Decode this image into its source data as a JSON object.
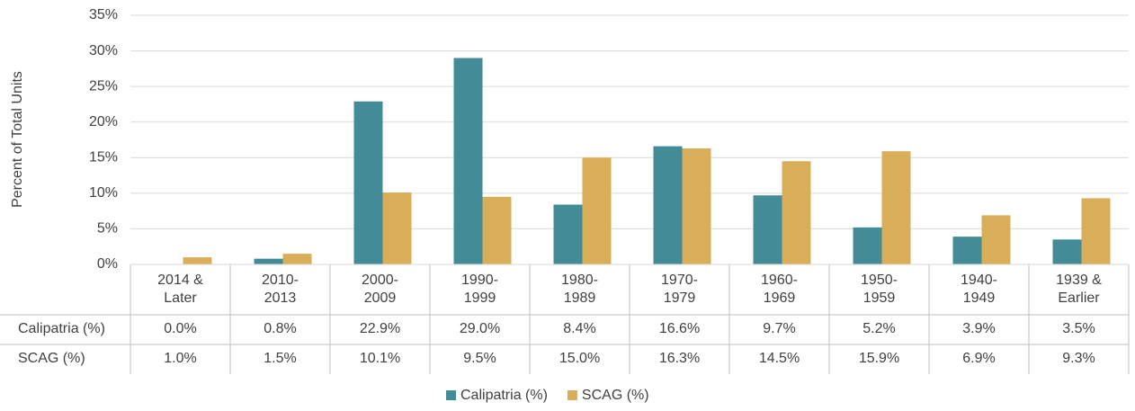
{
  "chart_data": {
    "type": "bar",
    "y_label": "Percent of Total Units",
    "categories": [
      "2014 &\nLater",
      "2010-\n2013",
      "2000-\n2009",
      "1990-\n1999",
      "1980-\n1989",
      "1970-\n1979",
      "1960-\n1969",
      "1950-\n1959",
      "1940-\n1949",
      "1939 &\nEarlier"
    ],
    "series": [
      {
        "name": "Calipatria (%)",
        "color": "#448b98",
        "values": [
          0.0,
          0.8,
          22.9,
          29.0,
          8.4,
          16.6,
          9.7,
          5.2,
          3.9,
          3.5
        ],
        "value_labels": [
          "0.0%",
          "0.8%",
          "22.9%",
          "29.0%",
          "8.4%",
          "16.6%",
          "9.7%",
          "5.2%",
          "3.9%",
          "3.5%"
        ]
      },
      {
        "name": "SCAG (%)",
        "color": "#d9ae58",
        "values": [
          1.0,
          1.5,
          10.1,
          9.5,
          15.0,
          16.3,
          14.5,
          15.9,
          6.9,
          9.3
        ],
        "value_labels": [
          "1.0%",
          "1.5%",
          "10.1%",
          "9.5%",
          "15.0%",
          "16.3%",
          "14.5%",
          "15.9%",
          "6.9%",
          "9.3%"
        ]
      }
    ],
    "ylim": [
      0,
      35
    ],
    "yticks": [
      {
        "value": 0,
        "label": "0%"
      },
      {
        "value": 5,
        "label": "5%"
      },
      {
        "value": 10,
        "label": "10%"
      },
      {
        "value": 15,
        "label": "15%"
      },
      {
        "value": 20,
        "label": "20%"
      },
      {
        "value": 25,
        "label": "25%"
      },
      {
        "value": 30,
        "label": "30%"
      },
      {
        "value": 35,
        "label": "35%"
      }
    ],
    "grid": true,
    "legend": "bottom"
  }
}
